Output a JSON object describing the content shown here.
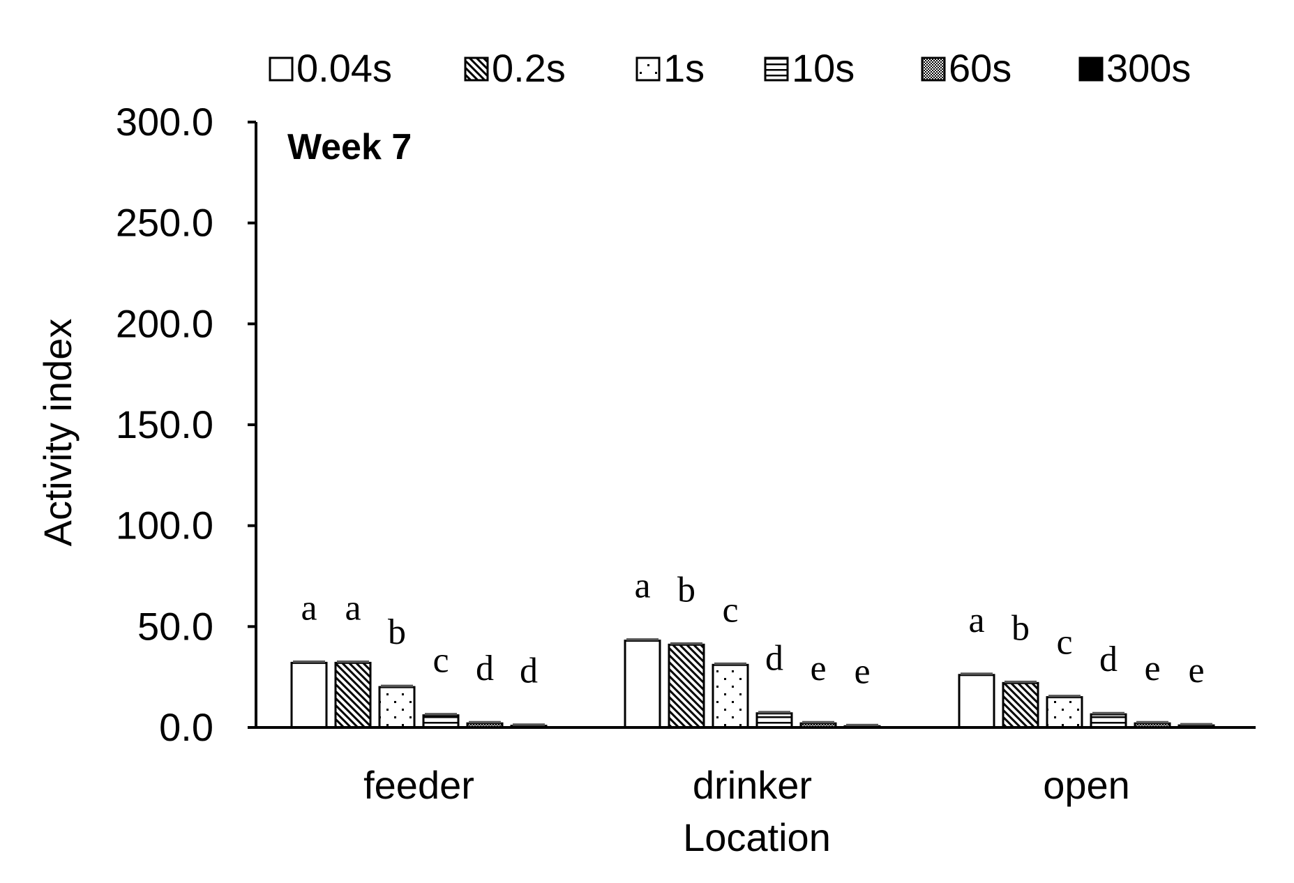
{
  "chart_data": {
    "type": "bar",
    "title": "Week 7",
    "xlabel": "Location",
    "ylabel": "Activity index",
    "ylim": [
      0,
      300
    ],
    "yticks": [
      "0.0",
      "50.0",
      "100.0",
      "150.0",
      "200.0",
      "250.0",
      "300.0"
    ],
    "grid": false,
    "legend_position": "top",
    "categories": [
      "feeder",
      "drinker",
      "open"
    ],
    "series": [
      {
        "name": "0.04s",
        "pattern": "empty",
        "values": [
          32,
          43,
          26
        ],
        "errors": [
          1.2,
          1.2,
          1.2
        ],
        "letters": [
          "a",
          "a",
          "a"
        ]
      },
      {
        "name": "0.2s",
        "pattern": "diagonal-hatch",
        "values": [
          32,
          41,
          22
        ],
        "errors": [
          1.2,
          1.2,
          1.2
        ],
        "letters": [
          "a",
          "b",
          "b"
        ]
      },
      {
        "name": "1s",
        "pattern": "dots",
        "values": [
          20,
          31,
          15
        ],
        "errors": [
          1.2,
          1.2,
          1.2
        ],
        "letters": [
          "b",
          "c",
          "c"
        ]
      },
      {
        "name": "10s",
        "pattern": "horizontal-stripes",
        "values": [
          6,
          7,
          6.5
        ],
        "errors": [
          1.2,
          1.2,
          1.2
        ],
        "letters": [
          "c",
          "d",
          "d"
        ]
      },
      {
        "name": "60s",
        "pattern": "checker",
        "values": [
          2,
          2,
          2
        ],
        "errors": [
          1.2,
          1.2,
          1.2
        ],
        "letters": [
          "d",
          "e",
          "e"
        ]
      },
      {
        "name": "300s",
        "pattern": "solid-black",
        "values": [
          0.8,
          0.6,
          1
        ],
        "errors": [
          1.2,
          1.2,
          1.2
        ],
        "letters": [
          "d",
          "e",
          "e"
        ]
      }
    ],
    "colors": {
      "axis": "#000000",
      "bar_stroke": "#000000",
      "fill": "#ffffff",
      "error_bar": "#555555"
    }
  }
}
